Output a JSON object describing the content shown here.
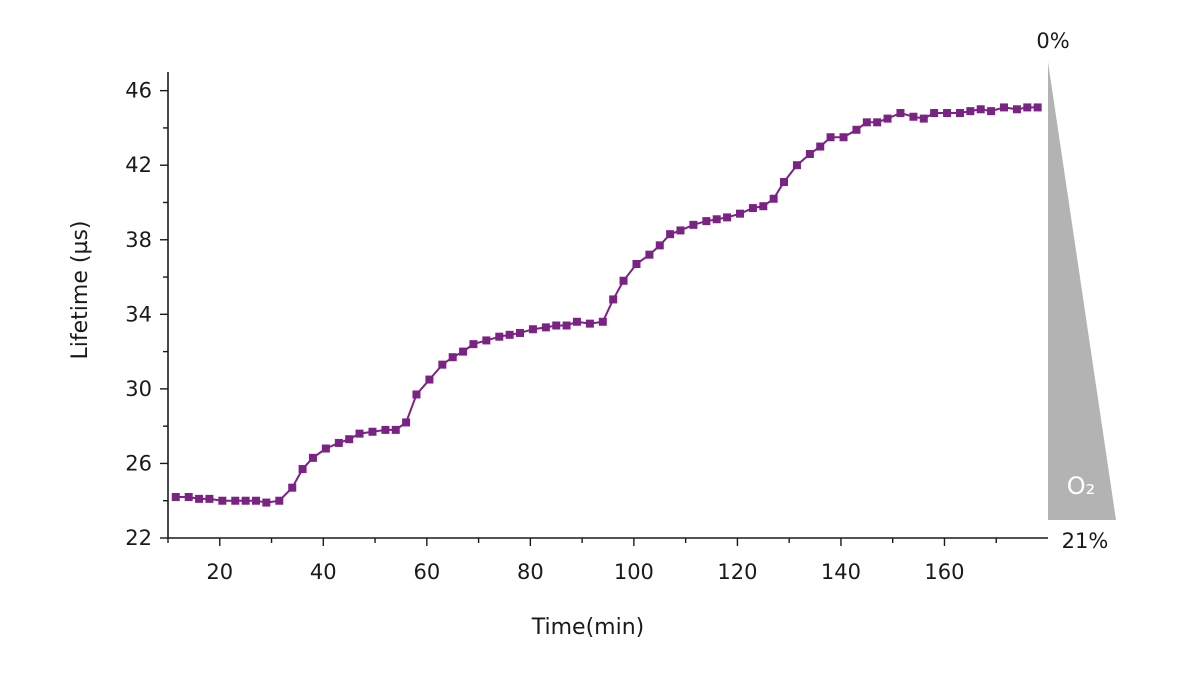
{
  "chart_data": {
    "type": "line",
    "title": "",
    "xlabel": "Time(min)",
    "ylabel": "Lifetime (µs)",
    "xlim": [
      10,
      180
    ],
    "ylim": [
      22,
      47
    ],
    "xticks": [
      20,
      40,
      60,
      80,
      100,
      120,
      140,
      160
    ],
    "yticks": [
      22,
      26,
      30,
      34,
      38,
      42,
      46
    ],
    "grid": false,
    "legend": "none",
    "series": [
      {
        "color": "#7b2384",
        "marker": "square",
        "x": [
          11.5,
          14,
          16,
          18,
          20.5,
          23,
          25,
          27,
          29,
          31.5,
          34,
          36,
          38,
          40.5,
          43,
          45,
          47,
          49.5,
          52,
          54,
          56,
          58,
          60.5,
          63,
          65,
          67,
          69,
          71.5,
          74,
          76,
          78,
          80.5,
          83,
          85,
          87,
          89,
          91.5,
          94,
          96,
          98,
          100.5,
          103,
          105,
          107,
          109,
          111.5,
          114,
          116,
          118,
          120.5,
          123,
          125,
          127,
          129,
          131.5,
          134,
          136,
          138,
          140.5,
          143,
          145,
          147,
          149,
          151.5,
          154,
          156,
          158,
          160.5,
          163,
          165,
          167,
          169,
          171.5,
          174,
          176,
          178
        ],
        "values": [
          24.2,
          24.2,
          24.1,
          24.1,
          24.0,
          24.0,
          24.0,
          24.0,
          23.9,
          24.0,
          24.7,
          25.7,
          26.3,
          26.8,
          27.1,
          27.3,
          27.6,
          27.7,
          27.8,
          27.8,
          28.2,
          29.7,
          30.5,
          31.3,
          31.7,
          32.0,
          32.4,
          32.6,
          32.8,
          32.9,
          33.0,
          33.2,
          33.3,
          33.4,
          33.4,
          33.6,
          33.5,
          33.6,
          34.8,
          35.8,
          36.7,
          37.2,
          37.7,
          38.3,
          38.5,
          38.8,
          39.0,
          39.1,
          39.2,
          39.4,
          39.7,
          39.8,
          40.2,
          41.1,
          42.0,
          42.6,
          43.0,
          43.5,
          43.5,
          43.9,
          44.3,
          44.3,
          44.5,
          44.8,
          44.6,
          44.5,
          44.8,
          44.8,
          44.8,
          44.9,
          45.0,
          44.9,
          45.1,
          45.0,
          45.1,
          45.1
        ]
      }
    ],
    "annotations": {
      "o2_gradient": {
        "top_label": "0%",
        "bottom_label": "21%",
        "label": "O₂",
        "color": "#b3b3b3"
      }
    }
  }
}
